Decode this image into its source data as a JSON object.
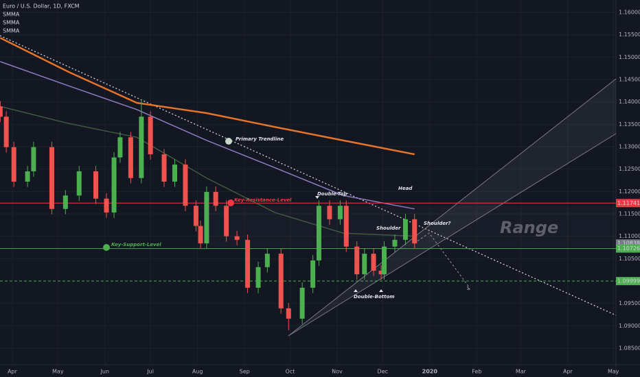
{
  "chart_data": {
    "type": "candlestick",
    "title": "Euro / U.S. Dollar, 1D, FXCM",
    "up_color": "#4caf50",
    "down_color": "#ef5350",
    "x": [
      -8,
      -4,
      1,
      10,
      14,
      26,
      35,
      44,
      55,
      62,
      67,
      71,
      78,
      85,
      91,
      100,
      107,
      114,
      121,
      124,
      128,
      134,
      141,
      148,
      155,
      162,
      168,
      177,
      182,
      191,
      198,
      202,
      209,
      216,
      220,
      227,
      232,
      238,
      243,
      245,
      252,
      259,
      265
    ],
    "open": [
      1.139,
      1.1367,
      1.1299,
      1.1222,
      1.1245,
      1.1299,
      1.1161,
      1.1191,
      1.1245,
      1.1184,
      1.1153,
      1.1276,
      1.1321,
      1.123,
      1.1367,
      1.1283,
      1.1222,
      1.126,
      1.1168,
      1.1123,
      1.1084,
      1.1199,
      1.1168,
      1.11,
      1.1092,
      1.0985,
      1.1031,
      1.1061,
      1.0939,
      1.0916,
      1.0985,
      1.1046,
      1.1168,
      1.1138,
      1.1168,
      1.1077,
      1.1015,
      1.1061,
      1.1023,
      1.1015,
      1.1077,
      1.1092,
      1.1138
    ],
    "high": [
      1.1402,
      1.1379,
      1.1311,
      1.1257,
      1.1311,
      1.1311,
      1.1203,
      1.1257,
      1.1257,
      1.1196,
      1.1288,
      1.1333,
      1.1333,
      1.1405,
      1.1379,
      1.1295,
      1.1272,
      1.1272,
      1.118,
      1.1135,
      1.1211,
      1.1211,
      1.118,
      1.1112,
      1.1104,
      1.1043,
      1.1073,
      1.1073,
      1.0951,
      1.0997,
      1.1058,
      1.118,
      1.118,
      1.118,
      1.118,
      1.1089,
      1.1073,
      1.1073,
      1.1035,
      1.1089,
      1.1104,
      1.115,
      1.115
    ],
    "low": [
      1.1355,
      1.1287,
      1.121,
      1.121,
      1.1233,
      1.1149,
      1.1149,
      1.1179,
      1.1172,
      1.1141,
      1.1141,
      1.1264,
      1.1218,
      1.1218,
      1.1271,
      1.121,
      1.121,
      1.1156,
      1.1111,
      1.1072,
      1.1072,
      1.1156,
      1.1088,
      1.108,
      1.0973,
      1.0973,
      1.1019,
      1.0927,
      1.089,
      1.0904,
      1.0973,
      1.1034,
      1.1126,
      1.1126,
      1.1065,
      1.1003,
      1.1003,
      1.1011,
      1.1003,
      1.1003,
      1.1065,
      1.108,
      1.1072
    ],
    "close": [
      1.1367,
      1.1299,
      1.1222,
      1.1245,
      1.1299,
      1.1161,
      1.1191,
      1.1245,
      1.1184,
      1.1153,
      1.1276,
      1.1321,
      1.123,
      1.1367,
      1.1283,
      1.1222,
      1.126,
      1.1168,
      1.1123,
      1.1084,
      1.1199,
      1.1168,
      1.11,
      1.1092,
      1.0985,
      1.1031,
      1.1061,
      1.0939,
      1.0916,
      1.0985,
      1.1046,
      1.1168,
      1.1138,
      1.1168,
      1.1077,
      1.1015,
      1.1061,
      1.1023,
      1.1015,
      1.1077,
      1.1092,
      1.1138,
      1.1084
    ],
    "indicators": [
      {
        "name": "SMMA",
        "color": "#e4742b",
        "x": [
          -8,
          37,
          82,
          128,
          173,
          218,
          265
        ],
        "values": [
          1.1543,
          1.1467,
          1.1398,
          1.1375,
          1.1344,
          1.1314,
          1.1283
        ]
      },
      {
        "name": "SMMA",
        "color": "#8e7cc3",
        "x": [
          -8,
          37,
          82,
          128,
          173,
          218,
          265
        ],
        "values": [
          1.149,
          1.1436,
          1.1383,
          1.1314,
          1.1253,
          1.1191,
          1.1161
        ]
      },
      {
        "name": "SMMA",
        "color": "#3f5a3f",
        "x": [
          -8,
          37,
          82,
          128,
          173,
          218,
          265
        ],
        "values": [
          1.139,
          1.1352,
          1.1321,
          1.123,
          1.1153,
          1.1107,
          1.11
        ]
      }
    ],
    "levels": [
      {
        "value": 1.11741,
        "color": "#f23645",
        "dashed": false,
        "line": true
      },
      {
        "value": 1.10838,
        "color": "#787b86",
        "dashed": false,
        "line": false
      },
      {
        "value": 1.10726,
        "color": "#4caf50",
        "dashed": false,
        "line": true
      },
      {
        "value": 1.09999,
        "color": "#4caf50",
        "dashed": true,
        "line": true
      }
    ],
    "annotations": [
      "Primary Trendline",
      "Key-Resistance-Level",
      "Key-Support-Level",
      "Double-Top",
      "Double-Bottom",
      "Shoulder",
      "Head",
      "Shoulder?",
      "Range"
    ],
    "xlim": [
      -8.14,
      397.7
    ],
    "ylim": [
      1.08163,
      1.16276
    ],
    "xticks": [
      {
        "value": 0,
        "label": "Apr"
      },
      {
        "value": 30,
        "label": "May"
      },
      {
        "value": 61,
        "label": "Jun"
      },
      {
        "value": 91,
        "label": "Jul"
      },
      {
        "value": 122,
        "label": "Aug"
      },
      {
        "value": 153,
        "label": "Sep"
      },
      {
        "value": 183,
        "label": "Oct"
      },
      {
        "value": 214,
        "label": "Nov"
      },
      {
        "value": 244,
        "label": "Dec"
      },
      {
        "value": 275,
        "label": "2020"
      },
      {
        "value": 306,
        "label": "Feb"
      },
      {
        "value": 335,
        "label": "Mar"
      },
      {
        "value": 366,
        "label": "Apr"
      },
      {
        "value": 396,
        "label": "May"
      }
    ],
    "yticks": [
      {
        "value": 1.16,
        "label": "1.16000"
      },
      {
        "value": 1.155,
        "label": "1.15500"
      },
      {
        "value": 1.15,
        "label": "1.15000"
      },
      {
        "value": 1.145,
        "label": "1.14500"
      },
      {
        "value": 1.14,
        "label": "1.14000"
      },
      {
        "value": 1.135,
        "label": "1.13500"
      },
      {
        "value": 1.13,
        "label": "1.13000"
      },
      {
        "value": 1.125,
        "label": "1.12500"
      },
      {
        "value": 1.12,
        "label": "1.12000"
      },
      {
        "value": 1.115,
        "label": "1.11500"
      },
      {
        "value": 1.11,
        "label": "1.11000"
      },
      {
        "value": 1.105,
        "label": "1.10500"
      },
      {
        "value": 1.095,
        "label": "1.09500"
      },
      {
        "value": 1.09,
        "label": "1.09000"
      },
      {
        "value": 1.085,
        "label": "1.08500"
      }
    ]
  }
}
